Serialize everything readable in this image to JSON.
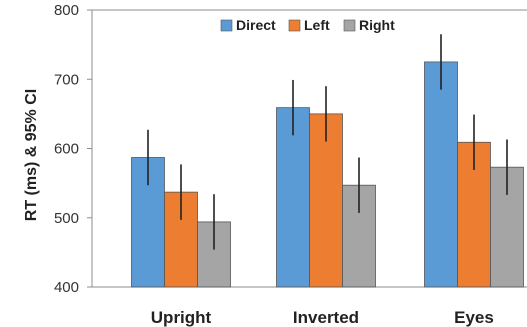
{
  "chart_data": {
    "type": "bar",
    "title": "",
    "xlabel": "",
    "ylabel": "RT (ms) & 95% CI",
    "ylim": [
      400,
      800
    ],
    "yticks": [
      400,
      500,
      600,
      700,
      800
    ],
    "categories": [
      "Upright",
      "Inverted",
      "Eyes"
    ],
    "legend_position": "top",
    "grid": false,
    "series": [
      {
        "name": "Direct",
        "color": "#5b9bd5",
        "values": [
          587,
          659,
          725
        ],
        "ci": [
          [
            547,
            627
          ],
          [
            619,
            699
          ],
          [
            685,
            765
          ]
        ]
      },
      {
        "name": "Left",
        "color": "#ed7d31",
        "values": [
          537,
          650,
          609
        ],
        "ci": [
          [
            497,
            577
          ],
          [
            610,
            690
          ],
          [
            569,
            649
          ]
        ]
      },
      {
        "name": "Right",
        "color": "#a5a5a5",
        "values": [
          494,
          547,
          573
        ],
        "ci": [
          [
            454,
            534
          ],
          [
            507,
            587
          ],
          [
            533,
            613
          ]
        ]
      }
    ]
  }
}
